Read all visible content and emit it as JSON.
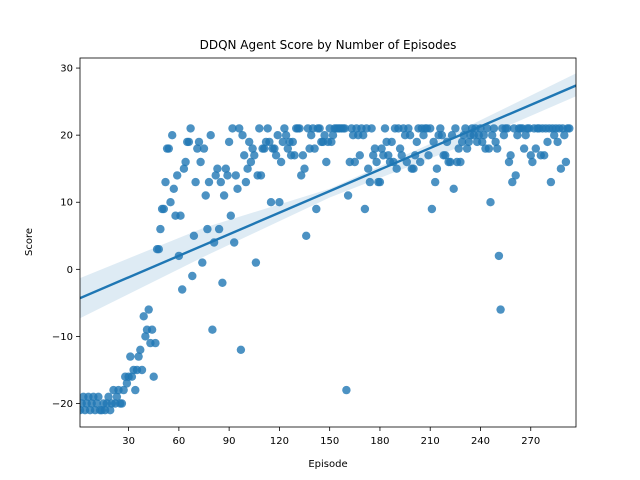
{
  "chart_data": {
    "type": "scatter",
    "title": "DDQN Agent Score by Number of Episodes",
    "xlabel": "Episode",
    "ylabel": "Score",
    "xlim": [
      1,
      297
    ],
    "ylim": [
      -23.5,
      31.5
    ],
    "xticks": [
      30,
      60,
      90,
      120,
      150,
      180,
      210,
      240,
      270
    ],
    "yticks": [
      -20,
      -10,
      0,
      10,
      20,
      30
    ],
    "ytick_labels": [
      "−20",
      "−10",
      "0",
      "10",
      "20",
      "30"
    ],
    "grid": false,
    "legend": "none",
    "colors": {
      "points": "#1f77b4",
      "regression_line": "#1f77b4",
      "confidence_band": "#1f77b4"
    },
    "regression": {
      "x": [
        1,
        297
      ],
      "y": [
        -4.3,
        27.4
      ]
    },
    "confidence_band": {
      "x": [
        1,
        75,
        150,
        225,
        297
      ],
      "lower": [
        -7.3,
        1.9,
        10.7,
        18.0,
        25.8
      ],
      "upper": [
        -1.3,
        6.2,
        12.0,
        20.4,
        29.2
      ]
    },
    "points": [
      [
        1,
        -21
      ],
      [
        2,
        -20
      ],
      [
        3,
        -19
      ],
      [
        4,
        -21
      ],
      [
        5,
        -20
      ],
      [
        6,
        -19
      ],
      [
        7,
        -21
      ],
      [
        8,
        -20
      ],
      [
        9,
        -19
      ],
      [
        10,
        -21
      ],
      [
        11,
        -20
      ],
      [
        12,
        -19
      ],
      [
        13,
        -21
      ],
      [
        14,
        -21
      ],
      [
        15,
        -20
      ],
      [
        16,
        -21
      ],
      [
        17,
        -20
      ],
      [
        18,
        -19
      ],
      [
        19,
        -21
      ],
      [
        20,
        -20
      ],
      [
        21,
        -18
      ],
      [
        22,
        -20
      ],
      [
        23,
        -19
      ],
      [
        24,
        -18
      ],
      [
        25,
        -20
      ],
      [
        26,
        -20
      ],
      [
        27,
        -18
      ],
      [
        28,
        -16
      ],
      [
        29,
        -17
      ],
      [
        30,
        -16
      ],
      [
        31,
        -13
      ],
      [
        32,
        -16
      ],
      [
        33,
        -15
      ],
      [
        34,
        -18
      ],
      [
        35,
        -15
      ],
      [
        36,
        -13
      ],
      [
        37,
        -12
      ],
      [
        38,
        -15
      ],
      [
        39,
        -7
      ],
      [
        40,
        -10
      ],
      [
        41,
        -9
      ],
      [
        42,
        -6
      ],
      [
        43,
        -11
      ],
      [
        44,
        -9
      ],
      [
        45,
        -16
      ],
      [
        46,
        -11
      ],
      [
        47,
        3
      ],
      [
        48,
        3
      ],
      [
        49,
        6
      ],
      [
        50,
        9
      ],
      [
        51,
        9
      ],
      [
        52,
        13
      ],
      [
        53,
        18
      ],
      [
        54,
        18
      ],
      [
        55,
        10
      ],
      [
        56,
        20
      ],
      [
        57,
        12
      ],
      [
        58,
        8
      ],
      [
        59,
        14
      ],
      [
        60,
        2
      ],
      [
        61,
        8
      ],
      [
        62,
        -3
      ],
      [
        63,
        15
      ],
      [
        64,
        16
      ],
      [
        65,
        19
      ],
      [
        66,
        19
      ],
      [
        67,
        21
      ],
      [
        68,
        -1
      ],
      [
        69,
        5
      ],
      [
        70,
        13
      ],
      [
        71,
        18
      ],
      [
        72,
        19
      ],
      [
        73,
        16
      ],
      [
        74,
        1
      ],
      [
        75,
        18
      ],
      [
        76,
        11
      ],
      [
        77,
        6
      ],
      [
        78,
        13
      ],
      [
        79,
        20
      ],
      [
        80,
        -9
      ],
      [
        81,
        4
      ],
      [
        82,
        14
      ],
      [
        83,
        15
      ],
      [
        84,
        6
      ],
      [
        85,
        13
      ],
      [
        86,
        -2
      ],
      [
        87,
        11
      ],
      [
        88,
        15
      ],
      [
        89,
        14
      ],
      [
        90,
        19
      ],
      [
        91,
        8
      ],
      [
        92,
        21
      ],
      [
        93,
        4
      ],
      [
        94,
        14
      ],
      [
        95,
        12
      ],
      [
        96,
        21
      ],
      [
        97,
        -12
      ],
      [
        98,
        20
      ],
      [
        99,
        17
      ],
      [
        100,
        13
      ],
      [
        101,
        15
      ],
      [
        102,
        19
      ],
      [
        103,
        16
      ],
      [
        104,
        18
      ],
      [
        105,
        17
      ],
      [
        106,
        1
      ],
      [
        107,
        14
      ],
      [
        108,
        21
      ],
      [
        109,
        14
      ],
      [
        110,
        18
      ],
      [
        111,
        18
      ],
      [
        112,
        19
      ],
      [
        113,
        21
      ],
      [
        114,
        19
      ],
      [
        115,
        10
      ],
      [
        116,
        18
      ],
      [
        117,
        18
      ],
      [
        118,
        17
      ],
      [
        119,
        20
      ],
      [
        120,
        10
      ],
      [
        121,
        16
      ],
      [
        122,
        19
      ],
      [
        123,
        21
      ],
      [
        124,
        20
      ],
      [
        125,
        18
      ],
      [
        126,
        19
      ],
      [
        127,
        17
      ],
      [
        128,
        19
      ],
      [
        129,
        17
      ],
      [
        130,
        21
      ],
      [
        131,
        21
      ],
      [
        132,
        21
      ],
      [
        133,
        14
      ],
      [
        134,
        17
      ],
      [
        135,
        15
      ],
      [
        136,
        5
      ],
      [
        137,
        21
      ],
      [
        138,
        18
      ],
      [
        139,
        20
      ],
      [
        140,
        21
      ],
      [
        141,
        18
      ],
      [
        142,
        9
      ],
      [
        143,
        21
      ],
      [
        144,
        21
      ],
      [
        145,
        19
      ],
      [
        146,
        19
      ],
      [
        147,
        20
      ],
      [
        148,
        16
      ],
      [
        149,
        19
      ],
      [
        150,
        21
      ],
      [
        151,
        19
      ],
      [
        152,
        20
      ],
      [
        153,
        21
      ],
      [
        154,
        21
      ],
      [
        155,
        21
      ],
      [
        156,
        21
      ],
      [
        157,
        21
      ],
      [
        158,
        21
      ],
      [
        159,
        21
      ],
      [
        160,
        -18
      ],
      [
        161,
        11
      ],
      [
        162,
        16
      ],
      [
        163,
        21
      ],
      [
        164,
        20
      ],
      [
        165,
        16
      ],
      [
        166,
        21
      ],
      [
        167,
        20
      ],
      [
        168,
        17
      ],
      [
        169,
        21
      ],
      [
        170,
        20
      ],
      [
        171,
        9
      ],
      [
        172,
        21
      ],
      [
        173,
        15
      ],
      [
        174,
        13
      ],
      [
        175,
        21
      ],
      [
        176,
        17
      ],
      [
        177,
        18
      ],
      [
        178,
        16
      ],
      [
        179,
        13
      ],
      [
        180,
        13
      ],
      [
        181,
        18
      ],
      [
        182,
        17
      ],
      [
        183,
        21
      ],
      [
        184,
        19
      ],
      [
        185,
        17
      ],
      [
        186,
        16
      ],
      [
        187,
        19
      ],
      [
        188,
        16
      ],
      [
        189,
        21
      ],
      [
        190,
        15
      ],
      [
        191,
        21
      ],
      [
        192,
        18
      ],
      [
        193,
        17
      ],
      [
        194,
        21
      ],
      [
        195,
        20
      ],
      [
        196,
        16
      ],
      [
        197,
        21
      ],
      [
        198,
        20
      ],
      [
        199,
        15
      ],
      [
        200,
        15
      ],
      [
        201,
        17
      ],
      [
        202,
        19
      ],
      [
        203,
        21
      ],
      [
        204,
        16
      ],
      [
        205,
        21
      ],
      [
        206,
        20
      ],
      [
        207,
        21
      ],
      [
        208,
        21
      ],
      [
        209,
        17
      ],
      [
        210,
        21
      ],
      [
        211,
        9
      ],
      [
        212,
        19
      ],
      [
        213,
        13
      ],
      [
        214,
        15
      ],
      [
        215,
        20
      ],
      [
        216,
        21
      ],
      [
        217,
        20
      ],
      [
        218,
        17
      ],
      [
        219,
        17
      ],
      [
        220,
        19
      ],
      [
        221,
        16
      ],
      [
        222,
        16
      ],
      [
        223,
        20
      ],
      [
        224,
        12
      ],
      [
        225,
        21
      ],
      [
        226,
        16
      ],
      [
        227,
        18
      ],
      [
        228,
        16
      ],
      [
        229,
        19
      ],
      [
        230,
        20
      ],
      [
        231,
        21
      ],
      [
        232,
        18
      ],
      [
        233,
        19
      ],
      [
        234,
        20
      ],
      [
        235,
        21
      ],
      [
        236,
        20
      ],
      [
        237,
        21
      ],
      [
        238,
        19
      ],
      [
        239,
        20
      ],
      [
        240,
        21
      ],
      [
        241,
        19
      ],
      [
        242,
        20
      ],
      [
        243,
        18
      ],
      [
        244,
        21
      ],
      [
        245,
        18
      ],
      [
        246,
        10
      ],
      [
        247,
        20
      ],
      [
        248,
        21
      ],
      [
        249,
        19
      ],
      [
        250,
        18
      ],
      [
        251,
        2
      ],
      [
        252,
        -6
      ],
      [
        253,
        21
      ],
      [
        254,
        20
      ],
      [
        255,
        21
      ],
      [
        256,
        21
      ],
      [
        257,
        16
      ],
      [
        258,
        17
      ],
      [
        259,
        13
      ],
      [
        260,
        21
      ],
      [
        261,
        14
      ],
      [
        262,
        20
      ],
      [
        263,
        21
      ],
      [
        264,
        21
      ],
      [
        265,
        21
      ],
      [
        266,
        18
      ],
      [
        267,
        20
      ],
      [
        268,
        21
      ],
      [
        269,
        21
      ],
      [
        270,
        17
      ],
      [
        271,
        16
      ],
      [
        272,
        21
      ],
      [
        273,
        18
      ],
      [
        274,
        21
      ],
      [
        275,
        21
      ],
      [
        276,
        17
      ],
      [
        277,
        21
      ],
      [
        278,
        17
      ],
      [
        279,
        21
      ],
      [
        280,
        19
      ],
      [
        281,
        21
      ],
      [
        282,
        13
      ],
      [
        283,
        21
      ],
      [
        284,
        20
      ],
      [
        285,
        21
      ],
      [
        286,
        19
      ],
      [
        287,
        21
      ],
      [
        288,
        15
      ],
      [
        289,
        21
      ],
      [
        290,
        20
      ],
      [
        291,
        16
      ],
      [
        292,
        21
      ],
      [
        293,
        21
      ]
    ]
  }
}
